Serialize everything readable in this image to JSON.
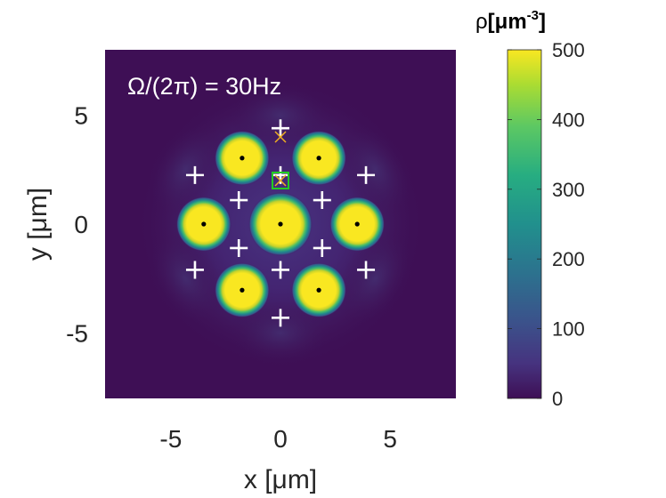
{
  "chart_data": {
    "type": "heatmap",
    "title": "",
    "annotation": "Ω/(2π) = 30Hz",
    "xlabel": "x [μm]",
    "ylabel": "y [μm]",
    "xlim": [
      -8,
      8
    ],
    "ylim": [
      -8,
      8
    ],
    "xticks": [
      -5,
      0,
      5
    ],
    "yticks": [
      5,
      0,
      -5
    ],
    "x_tick_labels": [
      "-5",
      "0",
      "5"
    ],
    "y_tick_labels": [
      "5",
      "0",
      "-5"
    ],
    "colorbar": {
      "title_base": "ρ",
      "title_unit": "[μm",
      "title_exp": "-3",
      "title_close": "]",
      "min": 0,
      "max": 500,
      "ticks": [
        500,
        400,
        300,
        200,
        100,
        0
      ],
      "tick_labels": [
        "500",
        "400",
        "300",
        "200",
        "100",
        "0"
      ],
      "colormap": "parula"
    },
    "background_color": "#3e0f55",
    "peak_color": "#f9e721",
    "vortex_cores": [
      {
        "x": 0,
        "y": 0
      },
      {
        "x": 3.5,
        "y": 0
      },
      {
        "x": -3.5,
        "y": 0
      },
      {
        "x": 1.75,
        "y": 3.03
      },
      {
        "x": -1.75,
        "y": 3.03
      },
      {
        "x": 1.75,
        "y": -3.03
      },
      {
        "x": -1.75,
        "y": -3.03
      }
    ],
    "plus_markers": [
      {
        "x": 0,
        "y": 4.4
      },
      {
        "x": 0,
        "y": 2.25
      },
      {
        "x": -3.9,
        "y": 2.25
      },
      {
        "x": 3.9,
        "y": 2.25
      },
      {
        "x": -1.9,
        "y": 1.1
      },
      {
        "x": 1.9,
        "y": 1.1
      },
      {
        "x": -1.9,
        "y": -1.1
      },
      {
        "x": 1.9,
        "y": -1.1
      },
      {
        "x": -3.9,
        "y": -2.1
      },
      {
        "x": 3.9,
        "y": -2.1
      },
      {
        "x": 0,
        "y": -2.1
      },
      {
        "x": 0,
        "y": -4.3
      }
    ],
    "cross_markers": [
      {
        "x": 0,
        "y": 4.0,
        "color": "#f0b020"
      },
      {
        "x": 0,
        "y": 2.0,
        "color": "#f0b020"
      }
    ],
    "square_marker": {
      "x": 0,
      "y": 2.0,
      "color": "#22cc22"
    }
  }
}
